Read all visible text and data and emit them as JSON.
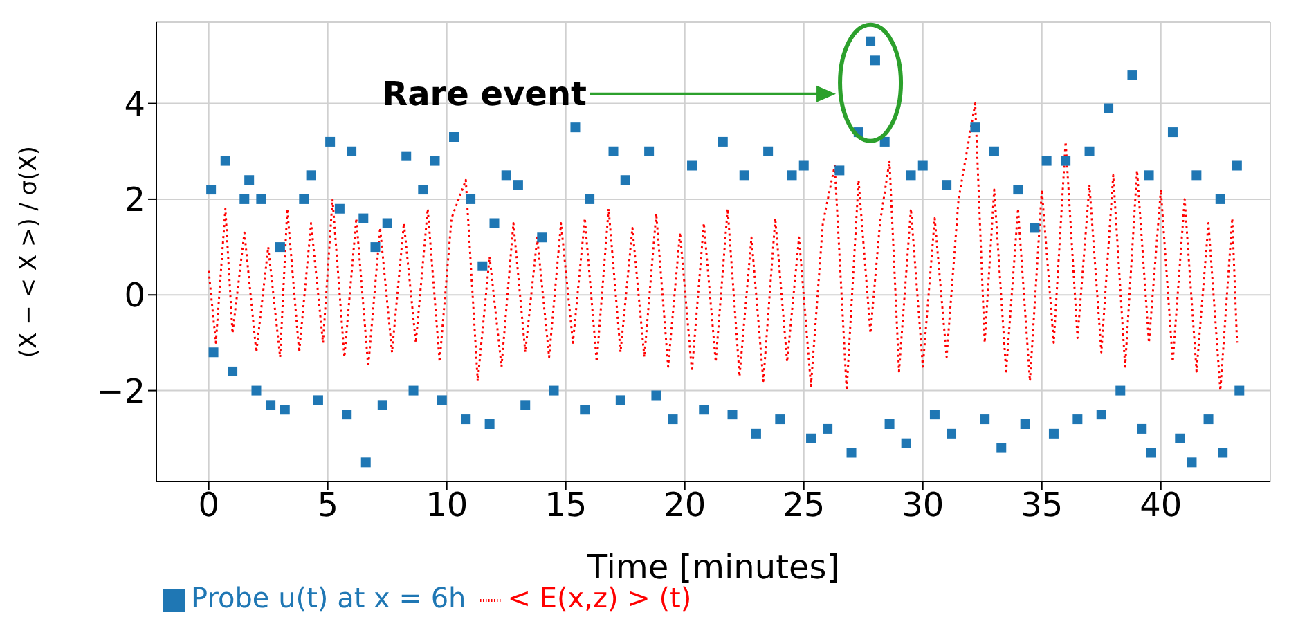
{
  "chart_data": {
    "type": "scatter",
    "xlabel": "Time [minutes]",
    "ylabel": "(X − < X >) / σ(X)",
    "xlim": [
      -2.2,
      44.6
    ],
    "xticks": [
      0,
      5,
      10,
      15,
      20,
      25,
      30,
      35,
      40
    ],
    "ylim": [
      -3.9,
      5.7
    ],
    "yticks": [
      -2,
      0,
      2,
      4
    ],
    "grid": true,
    "legend": "bottom left",
    "annotations": [
      "Rare event"
    ],
    "series": [
      {
        "name": "Probe u(t) at x = 6h",
        "marker": "square",
        "color": "#1f77b4",
        "x": [
          0.1,
          0.2,
          0.7,
          1.0,
          1.5,
          1.7,
          2.0,
          2.2,
          2.6,
          3.0,
          3.2,
          4.0,
          4.3,
          4.6,
          5.1,
          5.5,
          5.8,
          6.0,
          6.5,
          6.6,
          7.0,
          7.3,
          7.5,
          8.3,
          8.6,
          9.0,
          9.5,
          9.8,
          10.3,
          10.8,
          11.0,
          11.5,
          11.8,
          12.0,
          12.5,
          13.0,
          13.3,
          14.0,
          14.5,
          15.4,
          15.8,
          16.0,
          17.0,
          17.3,
          17.5,
          18.5,
          18.8,
          19.5,
          20.3,
          20.8,
          21.6,
          22.0,
          22.5,
          23.0,
          23.5,
          24.0,
          24.5,
          25.0,
          25.3,
          26.0,
          26.5,
          27.0,
          27.3,
          27.8,
          28.0,
          28.4,
          28.6,
          29.3,
          29.5,
          30.0,
          30.5,
          31.0,
          31.2,
          32.2,
          32.6,
          33.0,
          33.3,
          34.0,
          34.3,
          34.7,
          35.2,
          35.5,
          36.0,
          36.5,
          37.0,
          37.5,
          37.8,
          38.3,
          38.8,
          39.2,
          39.5,
          39.6,
          40.5,
          40.8,
          41.3,
          41.5,
          42.0,
          42.5,
          42.6,
          43.2,
          43.3
        ],
        "values": [
          2.2,
          -1.2,
          2.8,
          -1.6,
          2.0,
          2.4,
          -2.0,
          2.0,
          -2.3,
          1.0,
          -2.4,
          2.0,
          2.5,
          -2.2,
          3.2,
          1.8,
          -2.5,
          3.0,
          1.6,
          -3.5,
          1.0,
          -2.3,
          1.5,
          2.9,
          -2.0,
          2.2,
          2.8,
          -2.2,
          3.3,
          -2.6,
          2.0,
          0.6,
          -2.7,
          1.5,
          2.5,
          2.3,
          -2.3,
          1.2,
          -2.0,
          3.5,
          -2.4,
          2.0,
          3.0,
          -2.2,
          2.4,
          3.0,
          -2.1,
          -2.6,
          2.7,
          -2.4,
          3.2,
          -2.5,
          2.5,
          -2.9,
          3.0,
          -2.6,
          2.5,
          2.7,
          -3.0,
          -2.8,
          2.6,
          -3.3,
          3.4,
          5.3,
          4.9,
          3.2,
          -2.7,
          -3.1,
          2.5,
          2.7,
          -2.5,
          2.3,
          -2.9,
          3.5,
          -2.6,
          3.0,
          -3.2,
          2.2,
          -2.7,
          1.4,
          2.8,
          -2.9,
          2.8,
          -2.6,
          3.0,
          -2.5,
          3.9,
          -2.0,
          4.6,
          -2.8,
          2.5,
          -3.3,
          3.4,
          -3.0,
          -3.5,
          2.5,
          -2.6,
          2.0,
          -3.3,
          2.7,
          -2.0
        ]
      },
      {
        "name": "< E(x,z) > (t)",
        "type": "line",
        "marker": "none",
        "line_style": "dotted",
        "color": "#ff0000",
        "x": [
          0,
          0.3,
          0.7,
          1.0,
          1.5,
          2.0,
          2.5,
          3.0,
          3.3,
          3.8,
          4.3,
          4.8,
          5.2,
          5.7,
          6.2,
          6.7,
          7.2,
          7.7,
          8.2,
          8.7,
          9.2,
          9.7,
          10.2,
          10.8,
          11.3,
          11.8,
          12.3,
          12.8,
          13.3,
          13.8,
          14.3,
          14.8,
          15.3,
          15.8,
          16.3,
          16.8,
          17.3,
          17.8,
          18.3,
          18.8,
          19.3,
          19.8,
          20.3,
          20.8,
          21.3,
          21.8,
          22.3,
          22.8,
          23.3,
          23.8,
          24.3,
          24.8,
          25.3,
          25.8,
          26.3,
          26.8,
          27.3,
          27.8,
          28.2,
          28.6,
          29.0,
          29.5,
          30.0,
          30.5,
          31.0,
          31.5,
          32.2,
          32.6,
          33.0,
          33.5,
          34.0,
          34.5,
          35.0,
          35.5,
          36.0,
          36.5,
          37.0,
          37.5,
          38.0,
          38.5,
          39.0,
          39.5,
          40.0,
          40.5,
          41.0,
          41.5,
          42.0,
          42.5,
          43.0,
          43.2
        ],
        "values": [
          0.5,
          -1.0,
          1.8,
          -0.8,
          1.3,
          -1.2,
          1.0,
          -1.3,
          1.8,
          -1.2,
          1.5,
          -1.0,
          2.0,
          -1.3,
          1.6,
          -1.5,
          1.4,
          -1.2,
          1.5,
          -1.0,
          1.8,
          -1.4,
          1.6,
          2.4,
          -1.8,
          0.8,
          -1.5,
          1.5,
          -1.2,
          1.2,
          -1.3,
          1.5,
          -1.0,
          1.6,
          -1.4,
          1.8,
          -1.2,
          1.4,
          -1.3,
          1.7,
          -1.5,
          1.3,
          -1.6,
          1.5,
          -1.4,
          1.8,
          -1.7,
          1.2,
          -1.8,
          1.6,
          -1.4,
          1.2,
          -1.9,
          1.5,
          2.7,
          -2.0,
          2.4,
          -0.8,
          1.5,
          2.8,
          -1.6,
          1.8,
          -1.5,
          1.6,
          -1.3,
          2.0,
          4.0,
          -1.0,
          2.2,
          -1.6,
          1.8,
          -1.8,
          2.2,
          -1.0,
          3.2,
          -0.9,
          2.3,
          -1.2,
          2.5,
          -1.5,
          2.6,
          -1.0,
          2.2,
          -1.4,
          2.0,
          -1.6,
          1.5,
          -2.0,
          1.6,
          -1.0
        ]
      }
    ]
  }
}
